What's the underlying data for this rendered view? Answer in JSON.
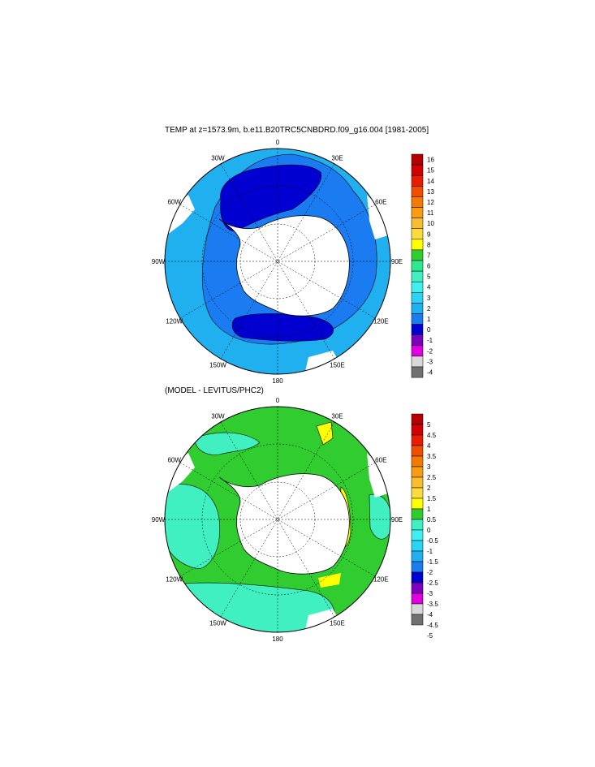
{
  "maps": [
    {
      "title": "TEMP at z=1573.9m, b.e11.B20TRC5CNBDRD.f09_g16.004 [1981-2005]",
      "lon_labels": [
        "0",
        "30E",
        "60E",
        "90E",
        "120E",
        "150E",
        "180",
        "150W",
        "120W",
        "90W",
        "60W",
        "30W"
      ],
      "colorbar": {
        "labels": [
          "16",
          "15",
          "14",
          "13",
          "12",
          "11",
          "10",
          "9",
          "8",
          "7",
          "6",
          "5",
          "4",
          "3",
          "2",
          "1",
          "0",
          "-1",
          "-2",
          "-3",
          "-4"
        ],
        "colors": [
          "#b40000",
          "#d20000",
          "#ea1c00",
          "#f04e00",
          "#f47a00",
          "#f89c14",
          "#fabe2c",
          "#fcdc3c",
          "#ffff00",
          "#30cc30",
          "#30e890",
          "#40f0c0",
          "#40f0f0",
          "#2ad4f4",
          "#20b0f0",
          "#1a7cf0",
          "#0000d0",
          "#8000c0",
          "#e000e0",
          "#d8d8d8",
          "#707070"
        ]
      }
    },
    {
      "title": "(MODEL - LEVITUS/PHC2)",
      "lon_labels": [
        "0",
        "30E",
        "60E",
        "90E",
        "120E",
        "150E",
        "180",
        "150W",
        "120W",
        "90W",
        "60W",
        "30W"
      ],
      "colorbar": {
        "labels": [
          "5",
          "4.5",
          "4",
          "3.5",
          "3",
          "2.5",
          "2",
          "1.5",
          "1",
          "0.5",
          "0",
          "-0.5",
          "-1",
          "-1.5",
          "-2",
          "-2.5",
          "-3",
          "-3.5",
          "-4",
          "-4.5",
          "-5"
        ],
        "colors": [
          "#b40000",
          "#d20000",
          "#ea1c00",
          "#f04e00",
          "#f47a00",
          "#f89c14",
          "#fabe2c",
          "#fcdc3c",
          "#ffff00",
          "#30cc30",
          "#40f0c0",
          "#40f0f0",
          "#2ad4f4",
          "#20b0f0",
          "#1a7cf0",
          "#0000d0",
          "#8000c0",
          "#e000e0",
          "#d8d8d8",
          "#707070"
        ]
      }
    }
  ]
}
